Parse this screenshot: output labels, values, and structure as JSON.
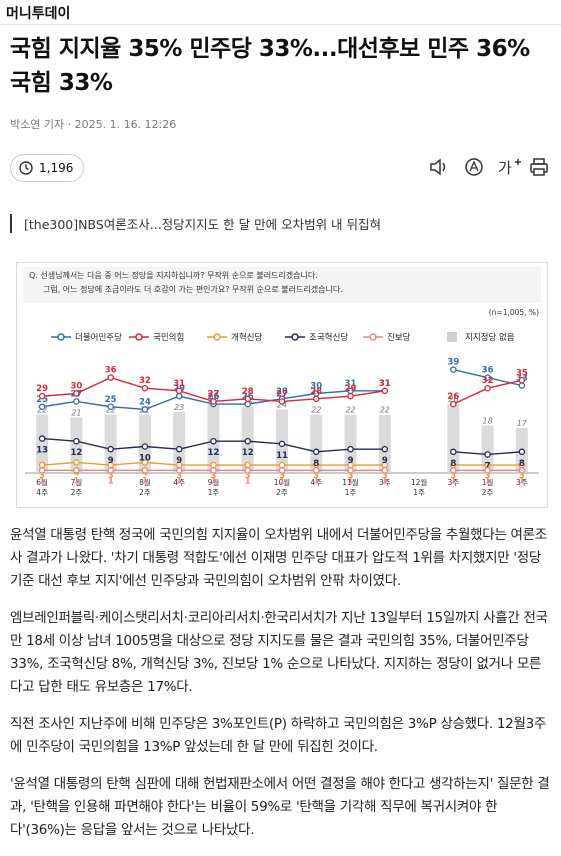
{
  "header": {
    "brand": "머니투데이"
  },
  "article": {
    "title": "국힘 지지율 35% 민주당 33%...대선후보 민주 36% 국힘 33%",
    "byline": "박소연 기자 · 2025. 1. 16. 12:26",
    "views": "1,196",
    "font_button": "가",
    "subheading": "[the300]NBS여론조사...정당지지도 한 달 만에 오차범위 내 뒤집혀",
    "paragraphs": [
      "윤석열 대통령 탄핵 정국에 국민의힘 지지율이 오차범위 내에서 더불어민주당을 추월했다는 여론조사 결과가 나왔다. '차기 대통령 적합도'에선 이재명 민주당 대표가 압도적 1위를 차지했지만 '정당 기준 대선 후보 지지'에선 민주당과 국민의힘이 오차범위 안팎 차이였다.",
      "엠브레인퍼블릭·케이스탯리서치·코리아리서치·한국리서치가 지난 13일부터 15일까지 사흘간 전국 만 18세 이상 남녀 1005명을 대상으로 정당 지지도를 물은 결과 국민의힘 35%, 더불어민주당 33%, 조국혁신당 8%, 개혁신당 3%, 진보당 1% 순으로 나타났다. 지지하는 정당이 없거나 모른다고 답한 태도 유보층은 17%다.",
      "직전 조사인 지난주에 비해 민주당은 3%포인트(P) 하락하고 국민의힘은 3%P 상승했다. 12월3주에 민주당이 국민의힘을 13%P 앞섰는데 한 달 만에 뒤집힌 것이다.",
      "'윤석열 대통령의 탄핵 심판에 대해 헌법재판소에서 어떤 결정을 해야 한다고 생각하는지' 질문한 결과, '탄핵을 인용해 파면해야 한다'는 비율이 59%로 '탄핵을 기각해 직무에 복귀시켜야 한다'(36%)는 응답을 앞서는 것으로 나타났다."
    ]
  },
  "chart_data": {
    "type": "line",
    "question": "Q. 선생님께서는 다음 중 어느 정당을 지지하십니까? 무작위 순으로 불러드리겠습니다.",
    "question2": "그럼, 어느 정당에 조금이라도 더 호감이 가는 편인가요? 무작위 순으로 불러드리겠습니다.",
    "note": "(n=1,005, %)",
    "categories": [
      "6월 4주",
      "7월 2주",
      null,
      "8월 2주",
      "4주",
      "9월 1주",
      null,
      "10월 2주",
      "4주",
      "11월 1주",
      "3주",
      "12월 1주",
      "3주",
      "1월 2주",
      "3주"
    ],
    "ylim": [
      0,
      40
    ],
    "series": [
      {
        "name": "더불어민주당",
        "color": "#2e6cb8",
        "values": [
          25,
          27,
          25,
          24,
          29,
          26,
          26,
          28,
          30,
          31,
          31,
          null,
          39,
          36,
          33
        ]
      },
      {
        "name": "국민의힘",
        "color": "#d9282f",
        "values": [
          29,
          30,
          36,
          32,
          31,
          27,
          28,
          27,
          28,
          29,
          31,
          null,
          26,
          32,
          35
        ]
      },
      {
        "name": "개혁신당",
        "color": "#f29a2e",
        "values": [
          3,
          4,
          3,
          4,
          3,
          3,
          3,
          3,
          3,
          3,
          3,
          null,
          3,
          3,
          3
        ]
      },
      {
        "name": "조국혁신당",
        "color": "#232b58",
        "values": [
          13,
          12,
          9,
          10,
          9,
          12,
          12,
          11,
          8,
          9,
          9,
          null,
          8,
          7,
          8
        ]
      },
      {
        "name": "진보당",
        "color": "#e7877f",
        "values": [
          1,
          1,
          1,
          1,
          1,
          1,
          1,
          1,
          1,
          1,
          1,
          null,
          1,
          1,
          1
        ]
      },
      {
        "name": "지지정당 없음",
        "color": "#cfcfcf",
        "kind": "bar",
        "values": [
          22,
          21,
          22,
          22,
          23,
          26,
          25,
          24,
          22,
          22,
          22,
          null,
          26,
          18,
          17
        ]
      }
    ]
  }
}
